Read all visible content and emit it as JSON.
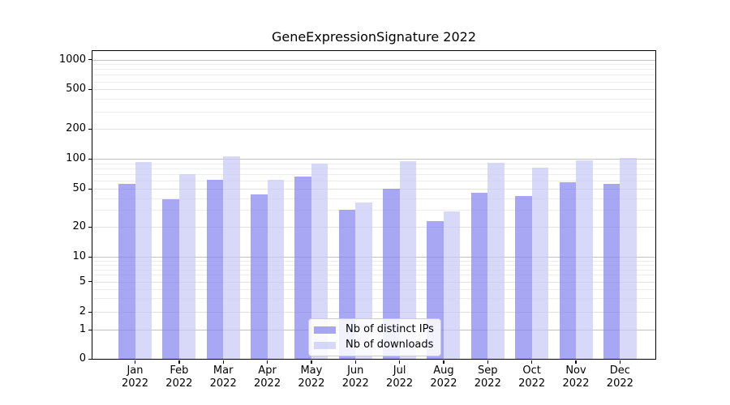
{
  "chart_data": {
    "type": "bar",
    "title": "GeneExpressionSignature 2022",
    "categories": [
      "Jan",
      "Feb",
      "Mar",
      "Apr",
      "May",
      "Jun",
      "Jul",
      "Aug",
      "Sep",
      "Oct",
      "Nov",
      "Dec"
    ],
    "x_year_label": "2022",
    "series": [
      {
        "name": "Nb of distinct IPs",
        "color": "#8282f0",
        "alpha": 0.7,
        "values": [
          56,
          39,
          61,
          44,
          66,
          30,
          50,
          23,
          45,
          42,
          58,
          56
        ]
      },
      {
        "name": "Nb of downloads",
        "color": "#c8c8f5",
        "alpha": 0.7,
        "values": [
          92,
          70,
          106,
          62,
          90,
          36,
          94,
          29,
          91,
          81,
          96,
          102
        ]
      }
    ],
    "y_axis": {
      "scale": "symlog",
      "tick_labels": [
        "0",
        "1",
        "2",
        "5",
        "10",
        "20",
        "50",
        "100",
        "200",
        "500",
        "1000"
      ],
      "tick_values": [
        0,
        1,
        2,
        5,
        10,
        20,
        50,
        100,
        200,
        500,
        1000
      ],
      "ylim": [
        0,
        1250
      ],
      "grid": true
    },
    "legend_position": "lower center"
  }
}
